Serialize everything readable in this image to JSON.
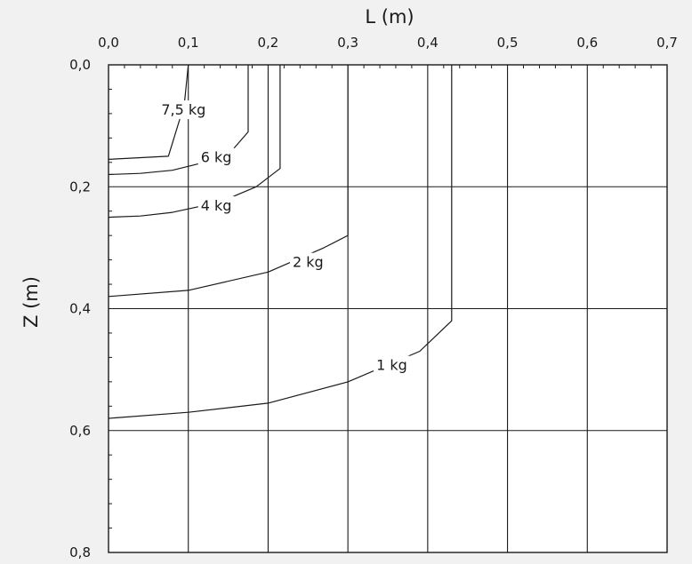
{
  "chart_data": {
    "type": "line",
    "xlabel": "L (m)",
    "ylabel": "Z (m)",
    "xlim": [
      0.0,
      0.7
    ],
    "ylim": [
      0.0,
      0.8
    ],
    "y_inverted": true,
    "x_axis_position": "top",
    "x_ticks": [
      "0,0",
      "0,1",
      "0,2",
      "0,3",
      "0,4",
      "0,5",
      "0,6",
      "0,7"
    ],
    "y_ticks": [
      "0,0",
      "0,2",
      "0,4",
      "0,6",
      "0,8"
    ],
    "grid": true,
    "colors": {
      "background": "#f1f1f1",
      "plot": "#ffffff",
      "ink": "#1a1a1a"
    },
    "series": [
      {
        "name": "7,5 kg",
        "label": "7,5 kg",
        "points": [
          [
            0.0,
            0.155
          ],
          [
            0.075,
            0.15
          ],
          [
            0.095,
            0.065
          ],
          [
            0.1,
            0.0
          ]
        ],
        "label_at": [
          0.094,
          0.073
        ]
      },
      {
        "name": "6 kg",
        "label": "6 kg",
        "points": [
          [
            0.0,
            0.18
          ],
          [
            0.04,
            0.178
          ],
          [
            0.08,
            0.173
          ],
          [
            0.12,
            0.16
          ],
          [
            0.155,
            0.14
          ],
          [
            0.175,
            0.11
          ],
          [
            0.175,
            0.0
          ]
        ],
        "label_at": [
          0.135,
          0.151
        ]
      },
      {
        "name": "4 kg",
        "label": "4 kg",
        "points": [
          [
            0.0,
            0.25
          ],
          [
            0.04,
            0.248
          ],
          [
            0.08,
            0.242
          ],
          [
            0.14,
            0.225
          ],
          [
            0.185,
            0.2
          ],
          [
            0.215,
            0.17
          ],
          [
            0.215,
            0.0
          ]
        ],
        "label_at": [
          0.135,
          0.23
        ]
      },
      {
        "name": "2 kg",
        "label": "2 kg",
        "points": [
          [
            0.0,
            0.38
          ],
          [
            0.1,
            0.37
          ],
          [
            0.2,
            0.34
          ],
          [
            0.27,
            0.3
          ],
          [
            0.3,
            0.28
          ],
          [
            0.3,
            0.0
          ]
        ],
        "label_at": [
          0.25,
          0.323
        ]
      },
      {
        "name": "1 kg",
        "label": "1 kg",
        "points": [
          [
            0.0,
            0.58
          ],
          [
            0.1,
            0.57
          ],
          [
            0.2,
            0.555
          ],
          [
            0.3,
            0.52
          ],
          [
            0.39,
            0.47
          ],
          [
            0.43,
            0.42
          ],
          [
            0.43,
            0.0
          ]
        ],
        "label_at": [
          0.355,
          0.492
        ]
      }
    ]
  }
}
